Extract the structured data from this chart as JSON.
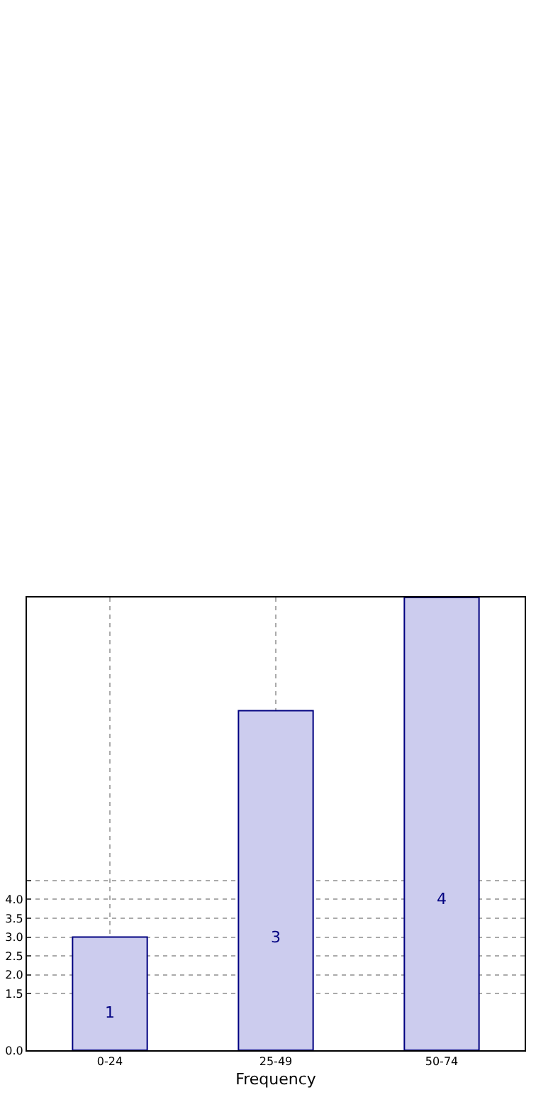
{
  "chart_data": {
    "type": "bar",
    "xlabel": "Frequency",
    "categories": [
      "0-24",
      "25-49",
      "50-74"
    ],
    "values": [
      3,
      9,
      12
    ],
    "color": "#ccccee",
    "ylim": [
      0,
      12
    ],
    "yticks": [
      {
        "value": 0,
        "label": "0.0"
      },
      {
        "value": 1.5,
        "label": "1.5"
      },
      {
        "value": 2,
        "label": "2.0"
      },
      {
        "value": 2.5,
        "label": "2.5"
      },
      {
        "value": 3,
        "label": "3.0"
      },
      {
        "value": 3.5,
        "label": "3.5"
      },
      {
        "value": 4,
        "label": "4.0"
      },
      {
        "value": 4.5,
        "label": null
      }
    ],
    "annotations": [
      "1",
      "3",
      "4"
    ],
    "grid": true
  }
}
